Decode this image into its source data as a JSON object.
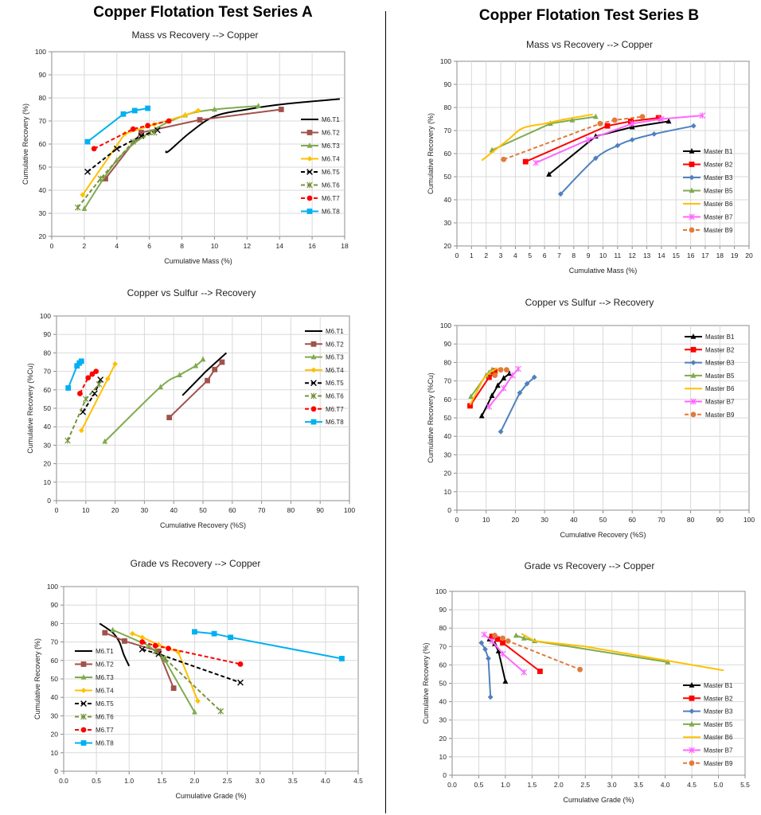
{
  "page": {
    "title_a": "Copper Flotation Test Series A",
    "title_b": "Copper Flotation Test Series B"
  },
  "chart_data": [
    {
      "id": "a1",
      "type": "line",
      "title": "Mass vs Recovery --> Copper",
      "xlabel": "Cumulative Mass (%)",
      "ylabel": "Cumulative Recovery (%)",
      "xlim": [
        0,
        18
      ],
      "xticks": [
        0,
        2,
        4,
        6,
        8,
        10,
        12,
        14,
        16,
        18
      ],
      "ylim": [
        20,
        100
      ],
      "yticks": [
        20,
        30,
        40,
        50,
        60,
        70,
        80,
        90,
        100
      ],
      "grid": true,
      "legend": "right",
      "series": [
        {
          "name": "M6.T1",
          "color": "#000000",
          "dash": "",
          "marker": "none",
          "smooth": true,
          "x": [
            7.0,
            7.2,
            8.5,
            10.0,
            12.0,
            14.5,
            17.7
          ],
          "y": [
            57,
            57,
            65,
            72,
            75,
            77.5,
            79.5
          ]
        },
        {
          "name": "M6.T2",
          "color": "#A0524B",
          "dash": "",
          "marker": "square",
          "x": [
            3.3,
            5.5,
            9.1,
            14.1
          ],
          "y": [
            45,
            65,
            70.5,
            75
          ]
        },
        {
          "name": "M6.T3",
          "color": "#7FAB4F",
          "dash": "",
          "marker": "triangle",
          "smooth": true,
          "x": [
            2.0,
            4.0,
            6.0,
            8.2,
            10.0,
            12.7
          ],
          "y": [
            32,
            53,
            65,
            72.5,
            75,
            76.5
          ]
        },
        {
          "name": "M6.T4",
          "color": "#FFC000",
          "dash": "",
          "marker": "diamond",
          "x": [
            1.9,
            4.5,
            6.3,
            8.2,
            9.0
          ],
          "y": [
            38,
            64.5,
            68.5,
            72.5,
            74.5
          ]
        },
        {
          "name": "M6.T5",
          "color": "#000000",
          "dash": "5,3",
          "marker": "x",
          "x": [
            2.2,
            4.0,
            5.5,
            6.5
          ],
          "y": [
            48,
            58,
            63.5,
            66
          ]
        },
        {
          "name": "M6.T6",
          "color": "#77933C",
          "dash": "5,3",
          "marker": "star",
          "x": [
            1.6,
            3.0,
            5.0,
            6.3
          ],
          "y": [
            32.5,
            45,
            61,
            65
          ]
        },
        {
          "name": "M6.T7",
          "color": "#FF0000",
          "dash": "5,3",
          "marker": "circle",
          "x": [
            2.6,
            5.0,
            5.9,
            7.2
          ],
          "y": [
            58,
            66.5,
            68,
            70
          ]
        },
        {
          "name": "M6.T8",
          "color": "#00B0F0",
          "dash": "",
          "marker": "square",
          "x": [
            2.2,
            4.4,
            5.1,
            5.9
          ],
          "y": [
            61,
            73,
            74.5,
            75.5
          ]
        }
      ]
    },
    {
      "id": "b1",
      "type": "line",
      "title": "Mass vs Recovery --> Copper",
      "xlabel": "Cumulative Mass (%)",
      "ylabel": "Cumulative Recovery (%)",
      "xlim": [
        0,
        20
      ],
      "xticks": [
        0,
        1,
        2,
        3,
        4,
        5,
        6,
        7,
        8,
        9,
        10,
        11,
        12,
        13,
        14,
        15,
        16,
        17,
        18,
        19,
        20
      ],
      "ylim": [
        20,
        100
      ],
      "yticks": [
        20,
        30,
        40,
        50,
        60,
        70,
        80,
        90,
        100
      ],
      "grid": true,
      "legend": "right",
      "series": [
        {
          "name": "Master B1",
          "color": "#000000",
          "dash": "",
          "marker": "triangle",
          "x": [
            6.3,
            9.5,
            12.0,
            14.5
          ],
          "y": [
            51,
            67.5,
            71.5,
            74
          ]
        },
        {
          "name": "Master B2",
          "color": "#FF0000",
          "dash": "",
          "marker": "square",
          "x": [
            4.7,
            10.3,
            11.9,
            13.8
          ],
          "y": [
            56.5,
            72,
            74,
            75.5
          ]
        },
        {
          "name": "Master B3",
          "color": "#4F81BD",
          "dash": "",
          "marker": "diamond",
          "smooth": true,
          "x": [
            7.1,
            9.5,
            11.0,
            12.0,
            13.5,
            16.2
          ],
          "y": [
            42.5,
            58,
            63.5,
            66,
            68.5,
            72
          ]
        },
        {
          "name": "Master B5",
          "color": "#7FAB4F",
          "dash": "",
          "marker": "triangle",
          "x": [
            2.4,
            6.4,
            7.9,
            9.5
          ],
          "y": [
            61.5,
            73,
            74.5,
            76
          ]
        },
        {
          "name": "Master B6",
          "color": "#FFC000",
          "dash": "",
          "marker": "none",
          "smooth": true,
          "x": [
            1.7,
            3.5,
            4.5,
            6.0,
            7.5,
            9.3
          ],
          "y": [
            57,
            66,
            71,
            73,
            75,
            77
          ]
        },
        {
          "name": "Master B7",
          "color": "#FF66FF",
          "dash": "",
          "marker": "star",
          "x": [
            5.4,
            9.0,
            12.0,
            14.0,
            16.8
          ],
          "y": [
            56,
            66,
            73,
            75,
            76.5
          ]
        },
        {
          "name": "Master B9",
          "color": "#E07B39",
          "dash": "5,3",
          "marker": "circle",
          "x": [
            3.2,
            9.8,
            10.8,
            12.7
          ],
          "y": [
            57.5,
            73,
            74.5,
            76
          ]
        }
      ]
    },
    {
      "id": "a2",
      "type": "line",
      "title": "Copper vs Sulfur --> Recovery",
      "xlabel": "Cumulative Recovery (%S)",
      "ylabel": "Cumulative Recovery (%Cu)",
      "xlim": [
        0,
        100
      ],
      "xticks": [
        0,
        10,
        20,
        30,
        40,
        50,
        60,
        70,
        80,
        90,
        100
      ],
      "ylim": [
        0,
        100
      ],
      "yticks": [
        0,
        10,
        20,
        30,
        40,
        50,
        60,
        70,
        80,
        90,
        100
      ],
      "grid": true,
      "legend": "top-right",
      "series": [
        {
          "name": "M6.T1",
          "color": "#000000",
          "dash": "",
          "marker": "none",
          "x": [
            43,
            51,
            58
          ],
          "y": [
            57,
            70,
            80
          ]
        },
        {
          "name": "M6.T2",
          "color": "#A0524B",
          "dash": "",
          "marker": "square",
          "x": [
            38.5,
            51.5,
            54,
            56.5
          ],
          "y": [
            45,
            65,
            71,
            75
          ]
        },
        {
          "name": "M6.T3",
          "color": "#7FAB4F",
          "dash": "",
          "marker": "triangle",
          "smooth": true,
          "x": [
            16.5,
            35.5,
            42,
            47.5,
            50
          ],
          "y": [
            32,
            61.5,
            68,
            73,
            76.5
          ]
        },
        {
          "name": "M6.T4",
          "color": "#FFC000",
          "dash": "",
          "marker": "diamond",
          "x": [
            8.5,
            17.5,
            20
          ],
          "y": [
            38,
            66,
            74
          ]
        },
        {
          "name": "M6.T5",
          "color": "#000000",
          "dash": "5,3",
          "marker": "x",
          "x": [
            9,
            13,
            15
          ],
          "y": [
            48,
            58,
            65.5
          ]
        },
        {
          "name": "M6.T6",
          "color": "#77933C",
          "dash": "5,3",
          "marker": "star",
          "x": [
            3.8,
            10,
            14.5
          ],
          "y": [
            32.5,
            55,
            63
          ]
        },
        {
          "name": "M6.T7",
          "color": "#FF0000",
          "dash": "5,3",
          "marker": "circle",
          "x": [
            8,
            10.8,
            12.2,
            13.5
          ],
          "y": [
            58,
            66.5,
            68.5,
            70
          ]
        },
        {
          "name": "M6.T8",
          "color": "#00B0F0",
          "dash": "",
          "marker": "square",
          "x": [
            4,
            7,
            7.8,
            8.5
          ],
          "y": [
            61,
            73,
            74.5,
            75.5
          ]
        }
      ]
    },
    {
      "id": "b2",
      "type": "line",
      "title": "Copper vs Sulfur --> Recovery",
      "xlabel": "Cumulative Recovery (%S)",
      "ylabel": "Cumulative Recovery (%Cu)",
      "xlim": [
        0,
        100
      ],
      "xticks": [
        0,
        10,
        20,
        30,
        40,
        50,
        60,
        70,
        80,
        90,
        100
      ],
      "ylim": [
        0,
        100
      ],
      "yticks": [
        0,
        10,
        20,
        30,
        40,
        50,
        60,
        70,
        80,
        90,
        100
      ],
      "grid": true,
      "legend": "top-right",
      "series": [
        {
          "name": "Master B1",
          "color": "#000000",
          "dash": "",
          "marker": "triangle",
          "x": [
            8.5,
            12,
            14,
            16,
            18
          ],
          "y": [
            51,
            62,
            67.5,
            71.5,
            74
          ]
        },
        {
          "name": "Master B2",
          "color": "#FF0000",
          "dash": "",
          "marker": "square",
          "x": [
            4.5,
            11,
            12,
            13
          ],
          "y": [
            56.5,
            72,
            74,
            75.5
          ]
        },
        {
          "name": "Master B3",
          "color": "#4F81BD",
          "dash": "",
          "marker": "diamond",
          "x": [
            15,
            21.5,
            24,
            26.5
          ],
          "y": [
            42.5,
            63.5,
            68.5,
            72
          ]
        },
        {
          "name": "Master B5",
          "color": "#7FAB4F",
          "dash": "",
          "marker": "triangle",
          "x": [
            4.8,
            10,
            11,
            12
          ],
          "y": [
            61.5,
            73,
            74.5,
            76
          ]
        },
        {
          "name": "Master B6",
          "color": "#FFC000",
          "dash": "",
          "marker": "none",
          "x": [
            4.5,
            9,
            11.5,
            14
          ],
          "y": [
            57,
            71,
            75,
            77
          ]
        },
        {
          "name": "Master B7",
          "color": "#FF66FF",
          "dash": "",
          "marker": "star",
          "x": [
            11,
            16,
            19,
            21
          ],
          "y": [
            56,
            66,
            73,
            76.5
          ]
        },
        {
          "name": "Master B9",
          "color": "#E07B39",
          "dash": "5,3",
          "marker": "circle",
          "x": [
            13,
            15,
            17
          ],
          "y": [
            73,
            76,
            76
          ]
        }
      ]
    },
    {
      "id": "a3",
      "type": "line",
      "title": "Grade vs Recovery --> Copper",
      "xlabel": "Cumulative Grade (%)",
      "ylabel": "Cumulative Recovery (%)",
      "xlim": [
        0,
        4.5
      ],
      "xticks": [
        0.0,
        0.5,
        1.0,
        1.5,
        2.0,
        2.5,
        3.0,
        3.5,
        4.0,
        4.5
      ],
      "xdecimals": 1,
      "ylim": [
        0,
        100
      ],
      "yticks": [
        0,
        10,
        20,
        30,
        40,
        50,
        60,
        70,
        80,
        90,
        100
      ],
      "grid": true,
      "legend": "left",
      "series": [
        {
          "name": "M6.T1",
          "color": "#000000",
          "dash": "",
          "marker": "none",
          "smooth": true,
          "x": [
            0.55,
            0.75,
            0.85,
            0.92,
            1.0
          ],
          "y": [
            80,
            75,
            70,
            63,
            57
          ]
        },
        {
          "name": "M6.T2",
          "color": "#A0524B",
          "dash": "",
          "marker": "square",
          "x": [
            0.63,
            0.93,
            1.45,
            1.68
          ],
          "y": [
            75,
            70.5,
            65,
            45
          ]
        },
        {
          "name": "M6.T3",
          "color": "#7FAB4F",
          "dash": "",
          "marker": "triangle",
          "x": [
            0.75,
            1.3,
            1.55,
            2.0
          ],
          "y": [
            76.5,
            68,
            60,
            32
          ]
        },
        {
          "name": "M6.T4",
          "color": "#FFC000",
          "dash": "",
          "marker": "diamond",
          "x": [
            1.05,
            1.2,
            1.45,
            1.75,
            2.05
          ],
          "y": [
            74.5,
            72.5,
            68.5,
            64.5,
            38
          ]
        },
        {
          "name": "M6.T5",
          "color": "#000000",
          "dash": "5,3",
          "marker": "x",
          "x": [
            1.2,
            1.45,
            2.7
          ],
          "y": [
            66,
            63.5,
            48
          ]
        },
        {
          "name": "M6.T6",
          "color": "#77933C",
          "dash": "5,3",
          "marker": "star",
          "x": [
            1.4,
            1.55,
            2.4
          ],
          "y": [
            65,
            61,
            32.5
          ]
        },
        {
          "name": "M6.T7",
          "color": "#FF0000",
          "dash": "5,3",
          "marker": "circle",
          "x": [
            1.2,
            1.4,
            1.6,
            2.7
          ],
          "y": [
            70,
            68,
            66.5,
            58
          ]
        },
        {
          "name": "M6.T8",
          "color": "#00B0F0",
          "dash": "",
          "marker": "square",
          "x": [
            2.0,
            2.3,
            2.55,
            4.25
          ],
          "y": [
            75.5,
            74.5,
            72.5,
            61
          ]
        }
      ]
    },
    {
      "id": "b3",
      "type": "line",
      "title": "Grade vs Recovery --> Copper",
      "xlabel": "Cumulative Grade (%)",
      "ylabel": "Cumulative Recovery (%)",
      "xlim": [
        0,
        5.5
      ],
      "xticks": [
        0.0,
        0.5,
        1.0,
        1.5,
        2.0,
        2.5,
        3.0,
        3.5,
        4.0,
        4.5,
        5.0,
        5.5
      ],
      "xdecimals": 1,
      "ylim": [
        0,
        100
      ],
      "yticks": [
        0,
        10,
        20,
        30,
        40,
        50,
        60,
        70,
        80,
        90,
        100
      ],
      "grid": true,
      "legend": "bottom-right",
      "series": [
        {
          "name": "Master B1",
          "color": "#000000",
          "dash": "",
          "marker": "triangle",
          "x": [
            0.7,
            0.8,
            0.87,
            1.0
          ],
          "y": [
            74,
            71.5,
            67.5,
            51
          ]
        },
        {
          "name": "Master B2",
          "color": "#FF0000",
          "dash": "",
          "marker": "square",
          "x": [
            0.75,
            0.85,
            0.95,
            1.65
          ],
          "y": [
            75.5,
            74,
            72,
            56.5
          ]
        },
        {
          "name": "Master B3",
          "color": "#4F81BD",
          "dash": "",
          "marker": "diamond",
          "x": [
            0.55,
            0.62,
            0.68,
            0.72
          ],
          "y": [
            72,
            68.5,
            63.5,
            42.5
          ]
        },
        {
          "name": "Master B5",
          "color": "#7FAB4F",
          "dash": "",
          "marker": "triangle",
          "x": [
            1.2,
            1.35,
            1.55,
            4.05
          ],
          "y": [
            76,
            74.5,
            73,
            61.5
          ]
        },
        {
          "name": "Master B6",
          "color": "#FFC000",
          "dash": "",
          "marker": "none",
          "x": [
            1.3,
            1.55,
            2.5,
            5.1
          ],
          "y": [
            77,
            73,
            70,
            57
          ]
        },
        {
          "name": "Master B7",
          "color": "#FF66FF",
          "dash": "",
          "marker": "star",
          "x": [
            0.6,
            0.75,
            0.95,
            1.35
          ],
          "y": [
            76.5,
            73,
            66,
            56
          ]
        },
        {
          "name": "Master B9",
          "color": "#E07B39",
          "dash": "5,3",
          "marker": "circle",
          "x": [
            0.8,
            0.95,
            1.05,
            2.4
          ],
          "y": [
            76,
            74.5,
            73,
            57.5
          ]
        }
      ]
    }
  ]
}
